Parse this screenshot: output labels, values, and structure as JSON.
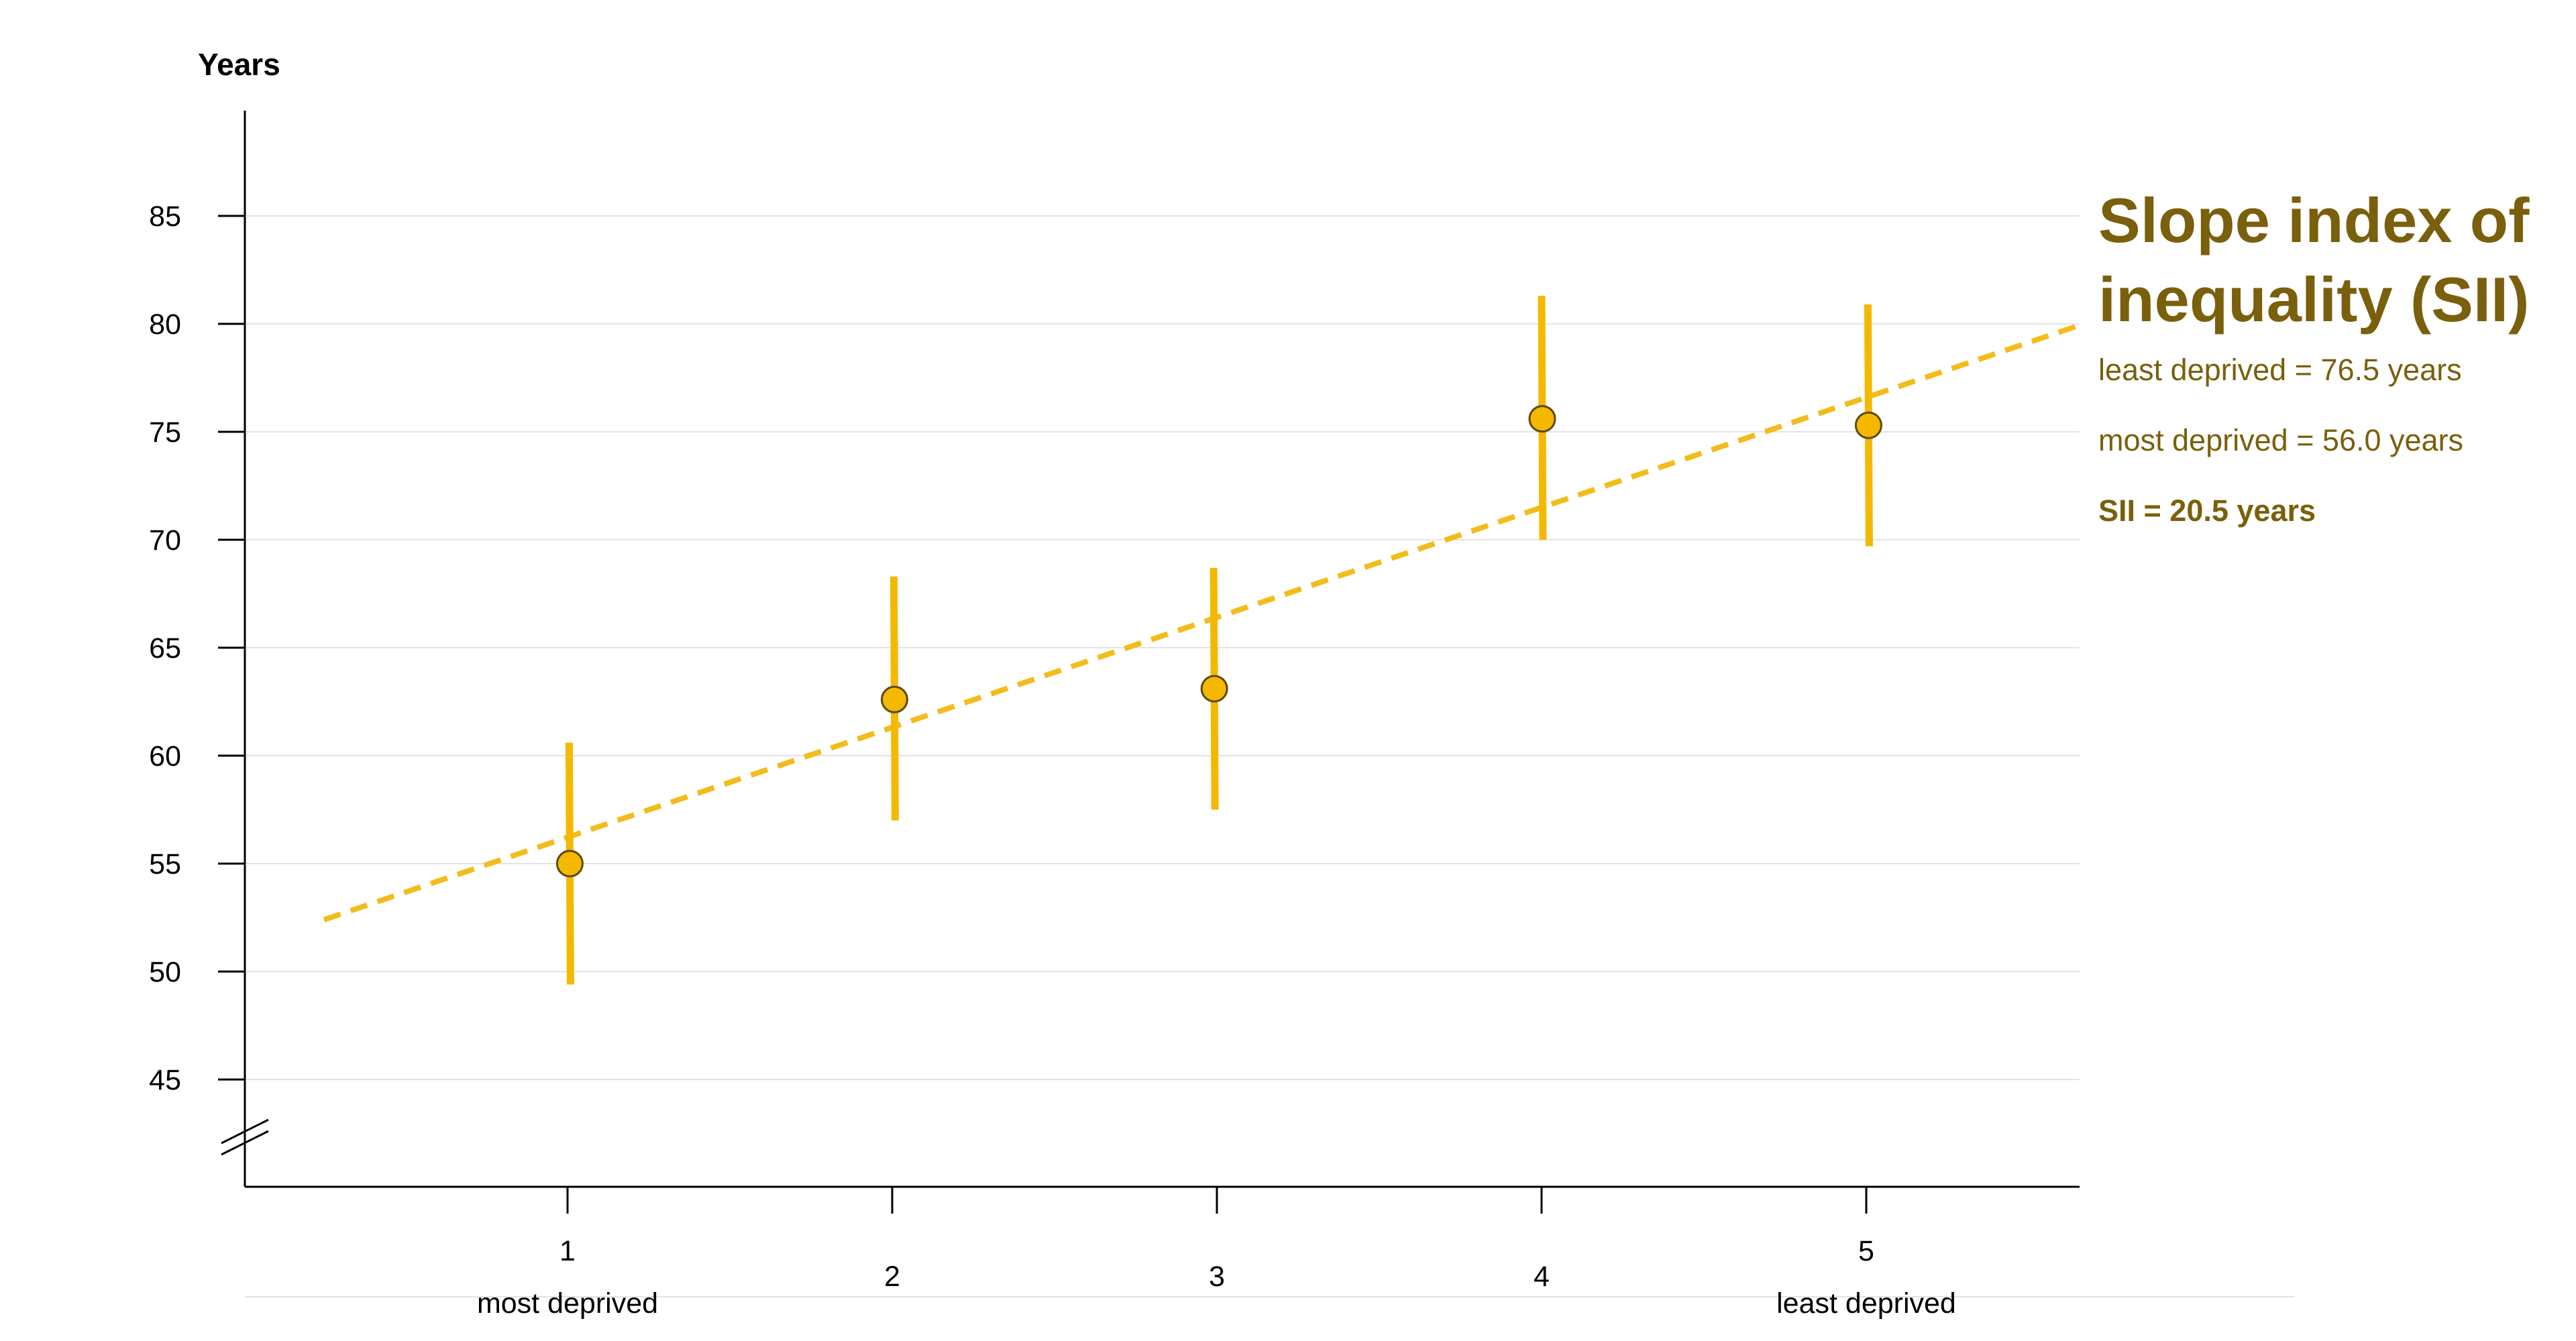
{
  "chart_data": {
    "type": "scatter",
    "ylabel": "Years",
    "xlabel": "",
    "categories": [
      "1",
      "2",
      "3",
      "4",
      "5"
    ],
    "category_sublabels": [
      "most deprived",
      "",
      "",
      "",
      "least deprived"
    ],
    "yticks": [
      45,
      50,
      55,
      60,
      65,
      70,
      75,
      80,
      85
    ],
    "ylim": [
      40,
      90
    ],
    "y_axis_break": true,
    "grid": "horizontal",
    "series": [
      {
        "values": [
          55.0,
          62.6,
          63.1,
          75.6,
          75.3
        ],
        "ci_lower": [
          49.4,
          57.0,
          57.5,
          70.0,
          69.7
        ],
        "ci_upper": [
          60.6,
          68.3,
          68.7,
          81.3,
          80.9
        ]
      }
    ],
    "trendline": {
      "style": "dashed",
      "x": [
        0.25,
        5.65
      ],
      "y": [
        52.4,
        79.9
      ]
    },
    "colors": {
      "marker": "#f5b800",
      "marker_edge": "#5a4a10",
      "trend": "#f2bc1b",
      "ci": "#f5b800"
    }
  },
  "sii_panel": {
    "title": "Slope index of inequality (SII)",
    "least_deprived": "least deprived = 76.5 years",
    "most_deprived": "most deprived = 56.0 years",
    "sii": "SII = 20.5 years",
    "color": "#7a5f0c"
  }
}
